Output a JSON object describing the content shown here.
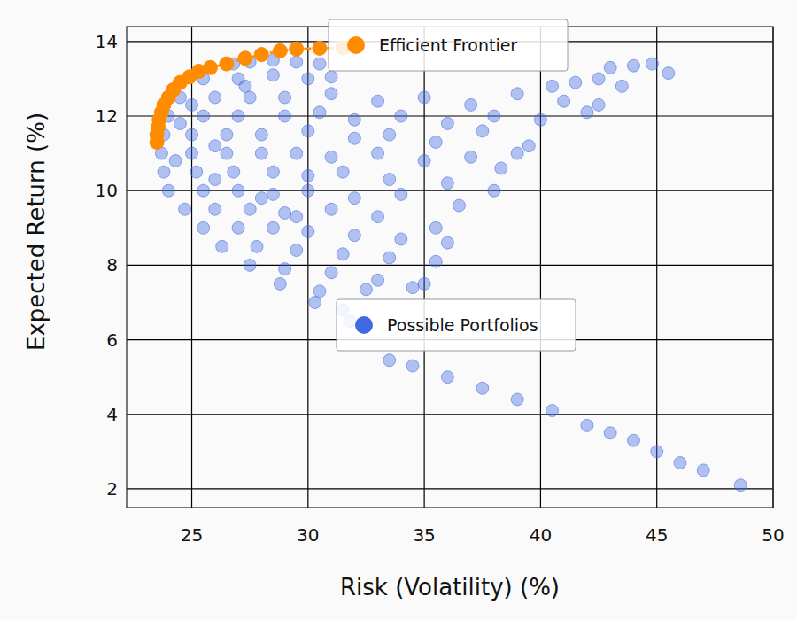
{
  "chart_data": {
    "type": "scatter",
    "x_label": "Risk (Volatility) (%)",
    "y_label": "Expected Return (%)",
    "xlim": [
      22.2,
      50
    ],
    "ylim": [
      1.5,
      14.4
    ],
    "xticks": [
      25,
      30,
      35,
      40,
      45,
      50
    ],
    "yticks": [
      2,
      4,
      6,
      8,
      10,
      12,
      14
    ],
    "grid": true,
    "legend": "upper center",
    "series": [
      {
        "name": "Possible Portfolios",
        "color": "#4169e1",
        "marker": "circle",
        "x": [
          26.8,
          27.5,
          28.5,
          29.5,
          30.5,
          43.0,
          44.0,
          44.8,
          45.5,
          25.5,
          27,
          28.5,
          30,
          31,
          42.5,
          43.5,
          24.5,
          26,
          27.5,
          29,
          31,
          33,
          35,
          37,
          39,
          41,
          42.5,
          24,
          25.5,
          27,
          29,
          30.5,
          32,
          34,
          36,
          38,
          40,
          42,
          23.8,
          25,
          26.5,
          28,
          30,
          32,
          33.5,
          35.5,
          37.5,
          39.5,
          23.7,
          25,
          26.5,
          28,
          29.5,
          31,
          33,
          35,
          37,
          39,
          23.8,
          25.2,
          26.8,
          28.5,
          30,
          31.5,
          33.5,
          36,
          38.3,
          24,
          25.5,
          27,
          28.5,
          30,
          32,
          34,
          36.5,
          24.7,
          26,
          27.5,
          29,
          31,
          33,
          35.5,
          25.5,
          27,
          28.5,
          30,
          32,
          34,
          36,
          26.3,
          27.8,
          29.5,
          31.5,
          33.5,
          35.5,
          27.5,
          29,
          31,
          33,
          35,
          28.8,
          30.5,
          32.5,
          34.5,
          30.3,
          31.5,
          31.8,
          33.5,
          34.5,
          36,
          37.5,
          39,
          40.5,
          42,
          43,
          44,
          45,
          46,
          47,
          48.6,
          24.5,
          25,
          24.3,
          26,
          27.3,
          26,
          28,
          29.5,
          38,
          40.5,
          41.5
        ],
        "values": [
          13.4,
          13.45,
          13.5,
          13.45,
          13.4,
          13.3,
          13.35,
          13.4,
          13.15,
          13.0,
          13.0,
          13.1,
          13.0,
          13.05,
          13.0,
          12.8,
          12.5,
          12.5,
          12.5,
          12.5,
          12.6,
          12.4,
          12.5,
          12.3,
          12.6,
          12.4,
          12.3,
          12.0,
          12.0,
          12.0,
          12.0,
          12.1,
          11.9,
          12.0,
          11.8,
          12.0,
          11.9,
          12.1,
          11.5,
          11.5,
          11.5,
          11.5,
          11.6,
          11.4,
          11.5,
          11.3,
          11.6,
          11.2,
          11.0,
          11.0,
          11.0,
          11.0,
          11.0,
          10.9,
          11.0,
          10.8,
          10.9,
          11.0,
          10.5,
          10.5,
          10.5,
          10.5,
          10.4,
          10.5,
          10.3,
          10.2,
          10.6,
          10.0,
          10.0,
          10.0,
          9.9,
          10.0,
          9.8,
          9.9,
          9.6,
          9.5,
          9.5,
          9.5,
          9.4,
          9.5,
          9.3,
          9.0,
          9.0,
          9.0,
          9.0,
          8.9,
          8.8,
          8.7,
          8.6,
          8.5,
          8.5,
          8.4,
          8.3,
          8.2,
          8.1,
          8.0,
          7.9,
          7.8,
          7.6,
          7.5,
          7.5,
          7.3,
          7.35,
          7.4,
          7.0,
          6.8,
          6.5,
          5.45,
          5.3,
          5.0,
          4.7,
          4.4,
          4.1,
          3.7,
          3.5,
          3.3,
          3.0,
          2.7,
          2.5,
          2.1,
          11.8,
          12.3,
          10.8,
          11.2,
          12.8,
          10.3,
          9.8,
          9.3,
          10.0,
          12.8,
          12.9
        ]
      },
      {
        "name": "Efficient Frontier",
        "color": "#ff8c00",
        "marker": "circle",
        "line_style": "dashed",
        "x": [
          23.5,
          23.5,
          23.55,
          23.6,
          23.7,
          23.8,
          24.0,
          24.2,
          24.5,
          24.9,
          25.3,
          25.8,
          26.5,
          27.3,
          28.0,
          28.8,
          29.5,
          30.5,
          31.5
        ],
        "values": [
          11.3,
          11.5,
          11.7,
          11.9,
          12.1,
          12.3,
          12.5,
          12.7,
          12.9,
          13.05,
          13.2,
          13.3,
          13.4,
          13.55,
          13.65,
          13.75,
          13.8,
          13.82,
          13.83
        ]
      }
    ]
  }
}
